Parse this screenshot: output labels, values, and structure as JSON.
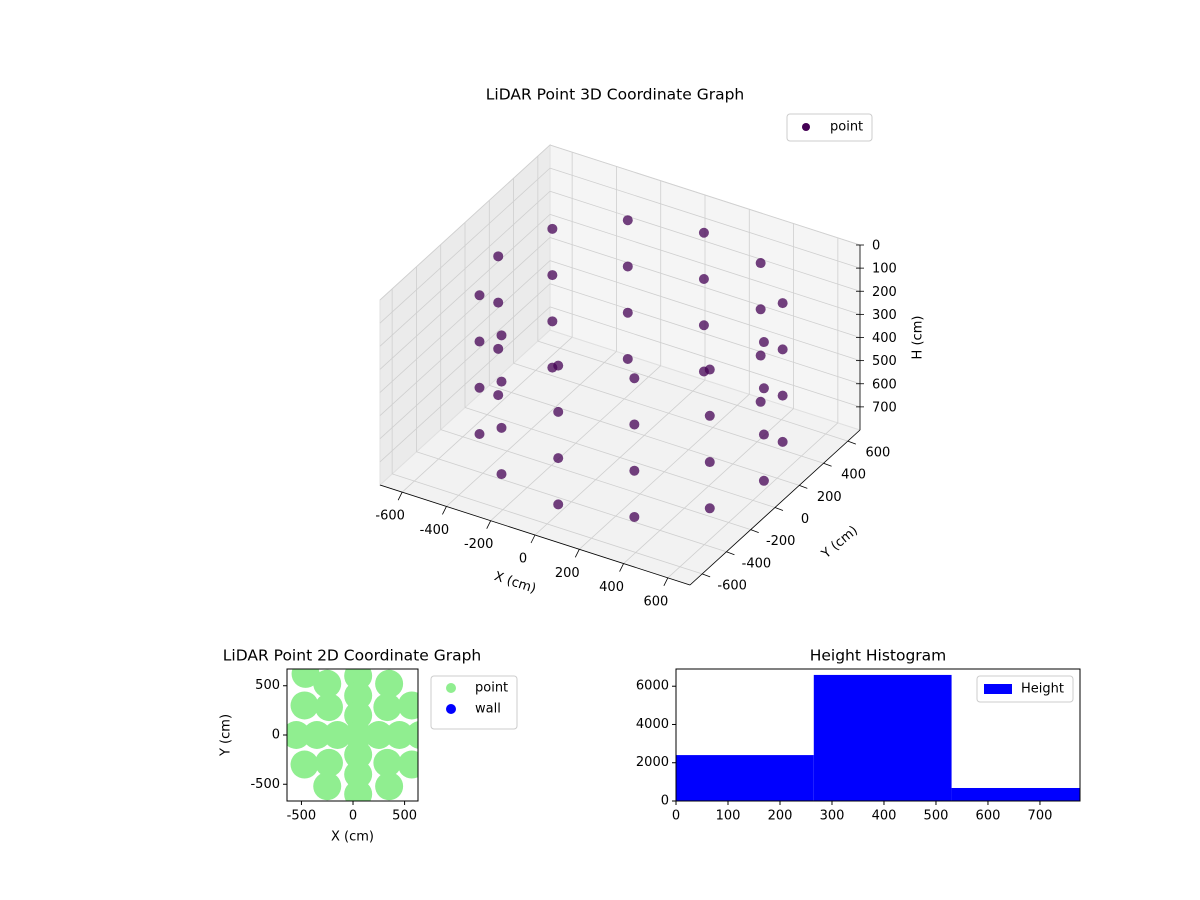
{
  "chart_data": [
    {
      "type": "scatter3d",
      "title": "LiDAR Point 3D Coordinate Graph",
      "xlabel": "X (cm)",
      "ylabel": "Y (cm)",
      "zlabel": "H (cm)",
      "xlim": [
        -700,
        700
      ],
      "ylim": [
        -700,
        700
      ],
      "zlim": [
        0,
        800
      ],
      "z_inverted": true,
      "xticks": [
        -600,
        -400,
        -200,
        0,
        200,
        400,
        600
      ],
      "yticks": [
        -600,
        -400,
        -200,
        0,
        200,
        400,
        600
      ],
      "zticks": [
        0,
        100,
        200,
        300,
        400,
        500,
        600,
        700
      ],
      "legend": "upper right",
      "grid": true,
      "series": [
        {
          "name": "point",
          "color": "#440154",
          "x": [
            650,
            650,
            650,
            650,
            570,
            570,
            570,
            570,
            350,
            350,
            350,
            350,
            50,
            50,
            50,
            50,
            -250,
            -250,
            -250,
            -250,
            -470,
            -470,
            -470,
            -470,
            -550,
            -550,
            -550,
            -550,
            -470,
            -470,
            -470,
            -470,
            -250,
            -250,
            -250,
            -250,
            50,
            50,
            50,
            50,
            350,
            350,
            350,
            350,
            570,
            570,
            570,
            570
          ],
          "y": [
            0,
            0,
            0,
            0,
            300,
            300,
            300,
            300,
            520,
            520,
            520,
            520,
            600,
            600,
            600,
            600,
            520,
            520,
            520,
            520,
            300,
            300,
            300,
            300,
            0,
            0,
            0,
            0,
            -300,
            -300,
            -300,
            -300,
            -520,
            -520,
            -520,
            -520,
            -600,
            -600,
            -600,
            -600,
            -520,
            -520,
            -520,
            -520,
            -300,
            -300,
            -300,
            -300
          ],
          "z": [
            100,
            300,
            500,
            700,
            100,
            300,
            500,
            700,
            100,
            300,
            500,
            700,
            100,
            300,
            500,
            700,
            100,
            300,
            500,
            700,
            100,
            300,
            500,
            700,
            100,
            300,
            500,
            700,
            100,
            300,
            500,
            700,
            100,
            300,
            500,
            700,
            100,
            300,
            500,
            700,
            100,
            300,
            500,
            700,
            100,
            300,
            500,
            700
          ]
        }
      ]
    },
    {
      "type": "scatter",
      "title": "LiDAR Point 2D Coordinate Graph",
      "xlabel": "X (cm)",
      "ylabel": "Y (cm)",
      "xlim": [
        -640,
        630
      ],
      "ylim": [
        -670,
        670
      ],
      "xticks": [
        -500,
        0,
        500
      ],
      "yticks": [
        -500,
        0,
        500
      ],
      "legend": "outside upper right",
      "series": [
        {
          "name": "point",
          "color": "#90ee90",
          "x": [
            650,
            570,
            350,
            50,
            -250,
            -470,
            -550,
            -470,
            -250,
            50,
            350,
            570,
            450,
            333,
            50,
            -233,
            -350,
            -233,
            50,
            333,
            250,
            50,
            -150,
            50,
            50,
            -460
          ],
          "y": [
            0,
            300,
            520,
            600,
            520,
            300,
            0,
            -300,
            -520,
            -600,
            -520,
            -300,
            0,
            283,
            400,
            283,
            0,
            -283,
            -400,
            -283,
            0,
            200,
            0,
            -200,
            0,
            620
          ]
        },
        {
          "name": "wall",
          "color": "#0000ff",
          "x": [],
          "y": []
        }
      ]
    },
    {
      "type": "histogram",
      "title": "Height Histogram",
      "bins": [
        0,
        265,
        530,
        777
      ],
      "xlim": [
        0,
        777
      ],
      "ylim": [
        0,
        6900
      ],
      "xticks": [
        0,
        100,
        200,
        300,
        400,
        500,
        600,
        700
      ],
      "yticks": [
        0,
        2000,
        4000,
        6000
      ],
      "legend": "upper right",
      "series": [
        {
          "name": "Height",
          "color": "#0000ff",
          "values": [
            2400,
            6590,
            680
          ]
        }
      ]
    }
  ]
}
